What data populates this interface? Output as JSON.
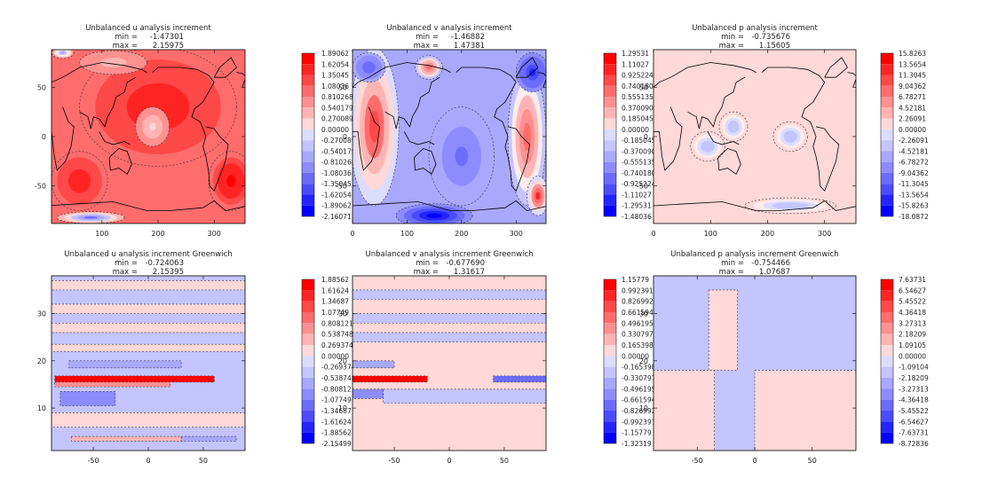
{
  "chart_data": [
    {
      "type": "heatmap",
      "id": "u",
      "title": "Unbalanced u analysis increment",
      "min_label": "min =",
      "min_value": "-1.47301",
      "max_label": "max =",
      "max_value": "2.15975",
      "xticks": [
        "100",
        "200",
        "300"
      ],
      "xtick_values": [
        100,
        200,
        300
      ],
      "xlim": [
        10,
        355
      ],
      "yticks": [
        "50",
        "0",
        "-50"
      ],
      "ytick_values": [
        50,
        0,
        -50
      ],
      "ylim": [
        -88,
        88
      ],
      "colorbar_labels": [
        "1.89062",
        "1.62054",
        "1.35045",
        "1.08036",
        "0.810268",
        "0.540179",
        "0.270089",
        "0.00000",
        "-0.270089",
        "-0.540179",
        "-0.810268",
        "-1.08036",
        "-1.35045",
        "-1.62054",
        "-1.89062",
        "-2.16071"
      ],
      "background_level": 0.55,
      "coastlines": true,
      "blobs": [
        {
          "x": 200,
          "y": 30,
          "rx": 140,
          "ry": 60,
          "v": 0.85
        },
        {
          "x": 330,
          "y": -45,
          "rx": 40,
          "ry": 30,
          "v": 1.0
        },
        {
          "x": 60,
          "y": -45,
          "rx": 50,
          "ry": 30,
          "v": 0.9
        },
        {
          "x": 190,
          "y": 10,
          "rx": 30,
          "ry": 20,
          "v": 0.2
        },
        {
          "x": 120,
          "y": 75,
          "rx": 60,
          "ry": 12,
          "v": 0.25
        },
        {
          "x": 80,
          "y": -82,
          "rx": 60,
          "ry": 6,
          "v": -0.55
        },
        {
          "x": 30,
          "y": 85,
          "rx": 20,
          "ry": 6,
          "v": -0.3
        }
      ]
    },
    {
      "type": "heatmap",
      "id": "v",
      "title": "Unbalanced v analysis increment",
      "min_label": "min =",
      "min_value": "-1.46882",
      "max_label": "max =",
      "max_value": "1.47381",
      "xticks": [
        "0",
        "100",
        "200",
        "300"
      ],
      "xtick_values": [
        0,
        100,
        200,
        300
      ],
      "xlim": [
        0,
        355
      ],
      "yticks": [
        "50",
        "0",
        "-50"
      ],
      "ytick_values": [
        50,
        0,
        -50
      ],
      "ylim": [
        -88,
        88
      ],
      "colorbar_labels": [
        "1.29531",
        "1.11027",
        "0.925224",
        "0.740180",
        "0.555135",
        "0.370090",
        "0.185045",
        "0.00000",
        "-0.185045",
        "-0.370090",
        "-0.555135",
        "-0.740180",
        "-0.925224",
        "-1.11027",
        "-1.29531",
        "-1.48036"
      ],
      "background_level": -0.25,
      "coastlines": true,
      "blobs": [
        {
          "x": 40,
          "y": 10,
          "rx": 45,
          "ry": 80,
          "v": 0.7
        },
        {
          "x": 320,
          "y": 0,
          "rx": 35,
          "ry": 70,
          "v": 0.55
        },
        {
          "x": 200,
          "y": -20,
          "rx": 60,
          "ry": 50,
          "v": -0.5
        },
        {
          "x": 150,
          "y": -80,
          "rx": 70,
          "ry": 12,
          "v": -1.0
        },
        {
          "x": 330,
          "y": 65,
          "rx": 30,
          "ry": 20,
          "v": -0.9
        },
        {
          "x": 30,
          "y": 70,
          "rx": 30,
          "ry": 15,
          "v": -0.6
        },
        {
          "x": 140,
          "y": 70,
          "rx": 25,
          "ry": 12,
          "v": 0.6
        },
        {
          "x": 340,
          "y": -60,
          "rx": 20,
          "ry": 20,
          "v": 0.8
        }
      ]
    },
    {
      "type": "heatmap",
      "id": "p",
      "title": "Unbalanced p analysis increment",
      "min_label": "min =",
      "min_value": "-0.735676",
      "max_label": "max =",
      "max_value": "1.15605",
      "xticks": [
        "0",
        "100",
        "200",
        "300"
      ],
      "xtick_values": [
        0,
        100,
        200,
        300
      ],
      "xlim": [
        0,
        355
      ],
      "yticks": [
        "50",
        "0",
        "-50"
      ],
      "ytick_values": [
        50,
        0,
        -50
      ],
      "ylim": [
        -88,
        88
      ],
      "colorbar_labels": [
        "15.8263",
        "13.5654",
        "11.3045",
        "9.04362",
        "6.78271",
        "4.52181",
        "2.26091",
        "0.00000",
        "-2.26091",
        "-4.52181",
        "-6.78272",
        "-9.04362",
        "-11.3045",
        "-13.5654",
        "-15.8263",
        "-18.0872"
      ],
      "background_level": 0.12,
      "coastlines": true,
      "blobs": [
        {
          "x": 140,
          "y": 10,
          "rx": 25,
          "ry": 15,
          "v": -0.12
        },
        {
          "x": 240,
          "y": 0,
          "rx": 30,
          "ry": 15,
          "v": -0.12
        },
        {
          "x": 95,
          "y": -10,
          "rx": 30,
          "ry": 15,
          "v": -0.12
        },
        {
          "x": 240,
          "y": -70,
          "rx": 80,
          "ry": 8,
          "v": -0.12
        }
      ]
    },
    {
      "type": "heatmap",
      "id": "ug",
      "title": "Unbalanced u analysis increment Greenwich",
      "min_label": "min =",
      "min_value": "-0.724063",
      "max_label": "max =",
      "max_value": "2.15395",
      "xticks": [
        "-50",
        "0",
        "50"
      ],
      "xtick_values": [
        -50,
        0,
        50
      ],
      "xlim": [
        -88,
        88
      ],
      "yticks": [
        "30",
        "20",
        "10"
      ],
      "ytick_values": [
        30,
        20,
        10
      ],
      "ylim": [
        1,
        38
      ],
      "colorbar_labels": [
        "1.88562",
        "1.61624",
        "1.34687",
        "1.07749",
        "0.808121",
        "0.538748",
        "0.269374",
        "0.00000",
        "-0.269374",
        "-0.538748",
        "-0.808121",
        "-1.07749",
        "-1.34687",
        "-1.61624",
        "-1.88562",
        "-2.15499"
      ],
      "background_level": -0.12,
      "coastlines": false,
      "bands": [
        {
          "y0": 35,
          "y1": 37,
          "v": 0.12
        },
        {
          "y0": 30,
          "y1": 32,
          "v": 0.12
        },
        {
          "y0": 26,
          "y1": 28,
          "v": 0.12
        },
        {
          "y0": 22,
          "y1": 23.5,
          "v": 0.12
        },
        {
          "y0": 18.5,
          "y1": 20,
          "v": -0.35,
          "x0": -72,
          "x1": 30
        },
        {
          "y0": 15.5,
          "y1": 16.8,
          "v": 1.0,
          "x0": -85,
          "x1": 60
        },
        {
          "y0": 14.5,
          "y1": 15.5,
          "v": 0.4,
          "x0": -85,
          "x1": 20
        },
        {
          "y0": 10.5,
          "y1": 13.5,
          "v": -0.45,
          "x0": -80,
          "x1": -30
        },
        {
          "y0": 6,
          "y1": 9,
          "v": 0.12
        },
        {
          "y0": 3,
          "y1": 4,
          "v": 0.25,
          "x0": -70,
          "x1": 30
        },
        {
          "y0": 3,
          "y1": 4,
          "v": -0.35,
          "x0": 30,
          "x1": 80
        }
      ]
    },
    {
      "type": "heatmap",
      "id": "vg",
      "title": "Unbalanced v analysis increment Greenwich",
      "min_label": "min =",
      "min_value": "-0.677690",
      "max_label": "max =",
      "max_value": "1.31617",
      "xticks": [
        "-50",
        "0",
        "50"
      ],
      "xtick_values": [
        -50,
        0,
        50
      ],
      "xlim": [
        -88,
        88
      ],
      "yticks": [
        "30",
        "20",
        "10"
      ],
      "ytick_values": [
        30,
        20,
        10
      ],
      "ylim": [
        1,
        38
      ],
      "colorbar_labels": [
        "1.15779",
        "0.992391",
        "0.826992",
        "0.661594",
        "0.496195",
        "0.330797",
        "0.165398",
        "0.00000",
        "-0.165398",
        "-0.330797",
        "-0.496195",
        "-0.661594",
        "-0.826992",
        "-0.992391",
        "-1.15779",
        "-1.32319"
      ],
      "background_level": 0.12,
      "coastlines": false,
      "bands": [
        {
          "y0": 33,
          "y1": 35,
          "v": -0.12
        },
        {
          "y0": 28,
          "y1": 30,
          "v": -0.12
        },
        {
          "y0": 24,
          "y1": 26,
          "v": -0.12
        },
        {
          "y0": 18.5,
          "y1": 20,
          "v": -0.35,
          "x0": -88,
          "x1": -50
        },
        {
          "y0": 15.5,
          "y1": 16.8,
          "v": 1.0,
          "x0": -88,
          "x1": -20
        },
        {
          "y0": 15.5,
          "y1": 16.8,
          "v": -0.55,
          "x0": 40,
          "x1": 88
        },
        {
          "y0": 12,
          "y1": 14,
          "v": -0.45,
          "x0": -88,
          "x1": -60
        },
        {
          "y0": 11,
          "y1": 14,
          "v": -0.12,
          "x0": -60,
          "x1": 88
        }
      ]
    },
    {
      "type": "heatmap",
      "id": "pg",
      "title": "Unbalanced p analysis increment Greenwich",
      "min_label": "min =",
      "min_value": "-0.754466",
      "max_label": "max =",
      "max_value": "1.07687",
      "xticks": [
        "-50",
        "0",
        "50"
      ],
      "xtick_values": [
        -50,
        0,
        50
      ],
      "xlim": [
        -88,
        88
      ],
      "yticks": [
        "30",
        "20",
        "10"
      ],
      "ytick_values": [
        30,
        20,
        10
      ],
      "ylim": [
        1,
        38
      ],
      "colorbar_labels": [
        "7.63731",
        "6.54627",
        "5.45522",
        "4.36418",
        "3.27313",
        "2.18209",
        "1.09105",
        "0.00000",
        "-1.09104",
        "-2.18209",
        "-3.27313",
        "-4.36418",
        "-5.45522",
        "-6.54627",
        "-7.63731",
        "-8.72836"
      ],
      "background_level": -0.12,
      "coastlines": false,
      "bands": [
        {
          "y0": 1,
          "y1": 18,
          "v": 0.12,
          "x0": -88,
          "x1": -35
        },
        {
          "y0": 1,
          "y1": 18,
          "v": 0.12,
          "x0": 0,
          "x1": 88
        },
        {
          "y0": 18,
          "y1": 35,
          "v": 0.12,
          "x0": -40,
          "x1": -15
        }
      ]
    }
  ]
}
